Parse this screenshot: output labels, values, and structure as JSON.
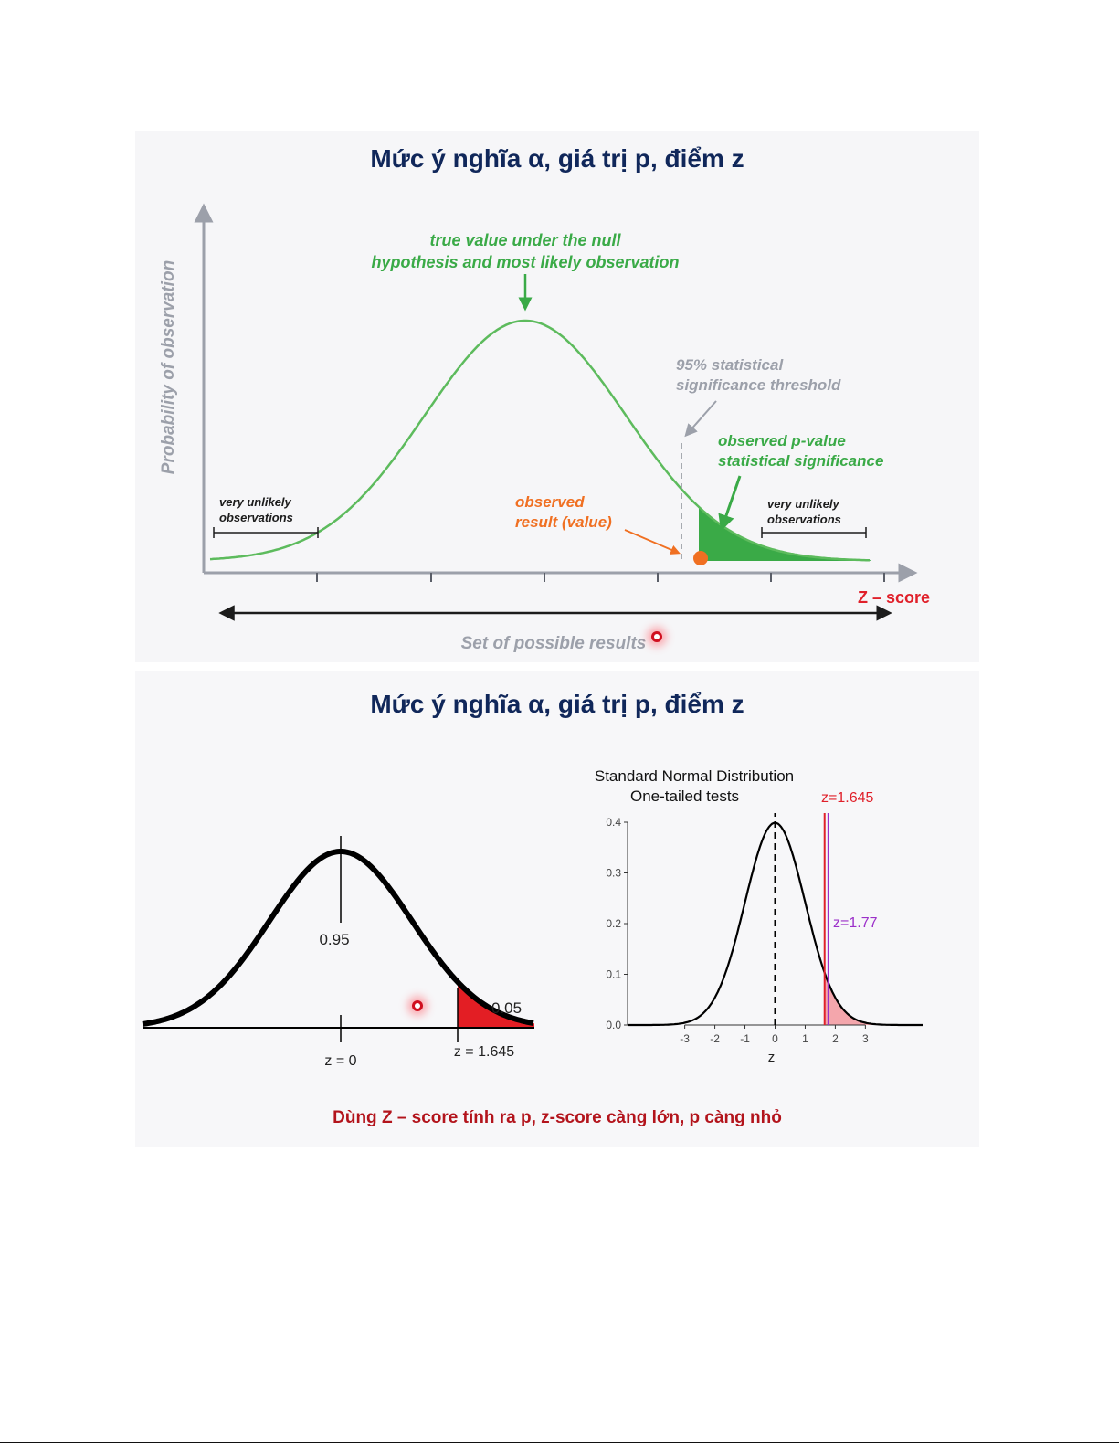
{
  "slide1": {
    "title": "Mức ý nghĩa α, giá trị p, điểm z",
    "y_axis_label": "Probability of observation",
    "peak_annotation": [
      "true value under the null",
      "hypothesis and most likely observation"
    ],
    "threshold_annotation": [
      "95% statistical",
      "significance threshold"
    ],
    "pvalue_annotation": [
      "observed p-value",
      "statistical significance"
    ],
    "observed_annotation": [
      "observed",
      "result (value)"
    ],
    "left_bracket_label": [
      "very unlikely",
      "observations"
    ],
    "right_bracket_label": [
      "very unlikely",
      "observations"
    ],
    "x_axis_label": "Z – score",
    "range_label": "Set of possible results",
    "colors": {
      "curve": "#5dbb5d",
      "fill": "#3aaa47",
      "observed": "#f07022",
      "threshold": "#9ca0aa",
      "zscore": "#e0202a"
    }
  },
  "slide2": {
    "title": "Mức ý nghĩa α, giá trị p, điểm z",
    "left_figure": {
      "center_area": "0.95",
      "tail_area": "0.05",
      "z_center": "z = 0",
      "z_critical": "z = 1.645",
      "colors": {
        "tail": "#e31e24"
      }
    },
    "right_figure": {
      "title_line1": "Standard Normal Distribution",
      "title_line2": "One-tailed tests",
      "critical_label": "z=1.645",
      "observed_label": "z=1.77",
      "x_axis_label": "z",
      "x_ticks": [
        "-3",
        "-2",
        "-1",
        "0",
        "1",
        "2",
        "3"
      ],
      "y_ticks": [
        "0.0",
        "0.1",
        "0.2",
        "0.3",
        "0.4"
      ],
      "colors": {
        "critical": "#e0202a",
        "observed": "#9b2fc9",
        "tail": "#f4a6ac"
      }
    },
    "caption": "Dùng Z – score tính ra p, z-score càng lớn, p càng nhỏ"
  },
  "chart_data": [
    {
      "type": "line",
      "title": "Standard Normal Distribution One-tailed tests",
      "xlabel": "z",
      "ylabel": "",
      "xlim": [
        -4.9,
        4.9
      ],
      "ylim": [
        0,
        0.4
      ],
      "x_ticks": [
        -3,
        -2,
        -1,
        0,
        1,
        2,
        3
      ],
      "y_ticks": [
        0.0,
        0.1,
        0.2,
        0.3,
        0.4
      ],
      "series": [
        {
          "x": [
            -4.5,
            -4,
            -3.5,
            -3,
            -2.5,
            -2,
            -1.5,
            -1,
            -0.5,
            0,
            0.5,
            1,
            1.5,
            2,
            2.5,
            3,
            3.5,
            4,
            4.5
          ],
          "values": [
            0.0,
            0.0001,
            0.0009,
            0.0044,
            0.0175,
            0.054,
            0.1295,
            0.242,
            0.3521,
            0.3989,
            0.3521,
            0.242,
            0.1295,
            0.054,
            0.0175,
            0.0044,
            0.0009,
            0.0001,
            0.0
          ]
        }
      ],
      "vertical_lines": [
        {
          "x": 0,
          "style": "dashed"
        },
        {
          "x": 1.645,
          "label": "z=1.645"
        },
        {
          "x": 1.77,
          "label": "z=1.77"
        }
      ],
      "shaded_region": {
        "from": 1.645,
        "to": 4.5
      },
      "grid": false
    }
  ]
}
